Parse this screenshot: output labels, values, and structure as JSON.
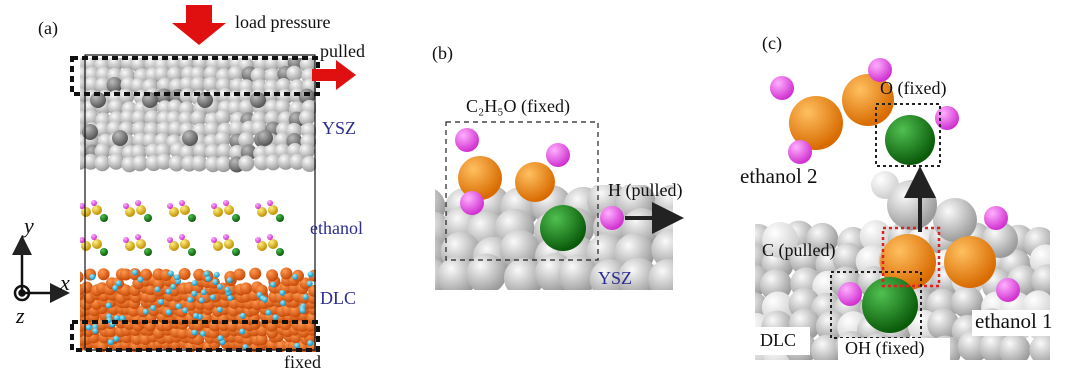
{
  "panel_a": {
    "label": "(a)",
    "load": "load pressure",
    "pulled": "pulled",
    "ysz": "YSZ",
    "ethanol": "ethanol",
    "dlc": "DLC",
    "fixed": "fixed",
    "axis_y": "y",
    "axis_x": "x",
    "axis_z": "z"
  },
  "panel_b": {
    "label": "(b)",
    "group": "C₂H₅O (fixed)",
    "pulled": "H (pulled)",
    "ysz": "YSZ"
  },
  "panel_c": {
    "label": "(c)",
    "o_fixed": "O (fixed)",
    "ethanol_2": "ethanol 2",
    "c_pulled": "C (pulled)",
    "dlc": "DLC",
    "oh_fixed": "OH (fixed)",
    "ethanol_1": "ethanol 1"
  }
}
